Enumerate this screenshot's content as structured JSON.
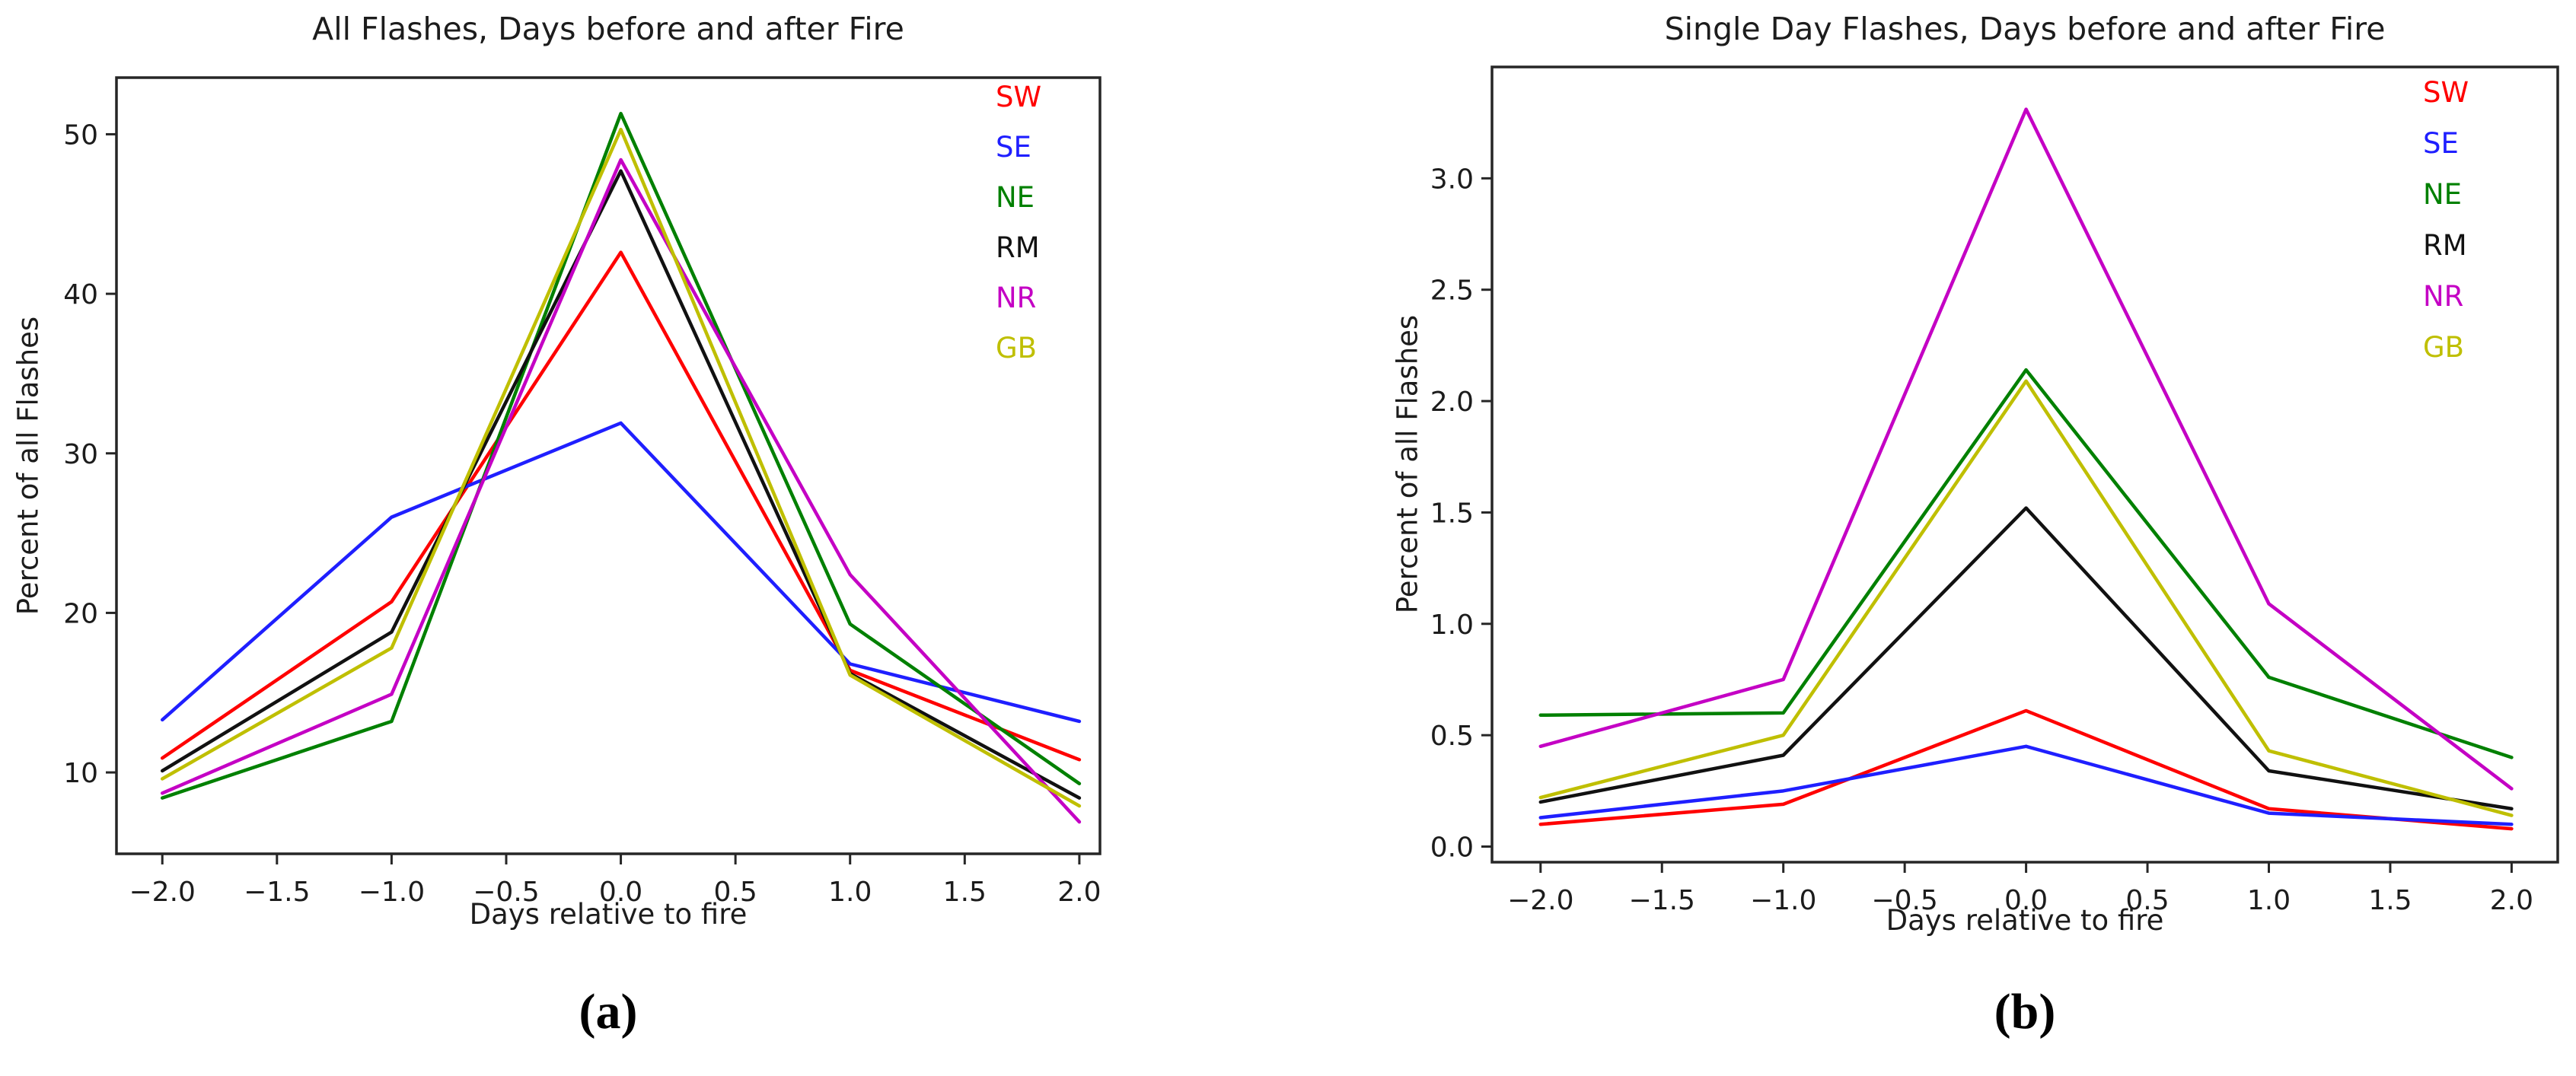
{
  "panels": {
    "a": "(a)",
    "b": "(b)"
  },
  "chart_data": [
    {
      "id": "all-flashes",
      "type": "line",
      "title": "All Flashes, Days before and after Fire",
      "xlabel": "Days relative to fire",
      "ylabel": "Percent of all Flashes",
      "x": [
        -2,
        -1,
        0,
        1,
        2
      ],
      "xlim": [
        -2.2,
        2.09
      ],
      "ylim": [
        4.9,
        53.55
      ],
      "xticks": [
        -2.0,
        -1.5,
        -1.0,
        -0.5,
        0.0,
        0.5,
        1.0,
        1.5,
        2.0
      ],
      "xtick_labels": [
        "−2.0",
        "−1.5",
        "−1.0",
        "−0.5",
        "0.0",
        "0.5",
        "1.0",
        "1.5",
        "2.0"
      ],
      "yticks": [
        10,
        20,
        30,
        40,
        50
      ],
      "ytick_labels": [
        "10",
        "20",
        "30",
        "40",
        "50"
      ],
      "grid": false,
      "legend_position": "upper right",
      "series": [
        {
          "name": "SW",
          "color": "#ff0000",
          "values": [
            10.9,
            20.7,
            42.6,
            16.4,
            10.8
          ]
        },
        {
          "name": "SE",
          "color": "#1f1fff",
          "values": [
            13.3,
            26.0,
            31.9,
            16.8,
            13.2
          ]
        },
        {
          "name": "NE",
          "color": "#008000",
          "values": [
            8.4,
            13.2,
            51.3,
            19.3,
            9.3
          ]
        },
        {
          "name": "RM",
          "color": "#111111",
          "values": [
            10.1,
            18.8,
            47.7,
            16.2,
            8.4
          ]
        },
        {
          "name": "NR",
          "color": "#c400c4",
          "values": [
            8.7,
            14.9,
            48.4,
            22.4,
            6.9
          ]
        },
        {
          "name": "GB",
          "color": "#bfbf00",
          "values": [
            9.6,
            17.8,
            50.3,
            16.1,
            7.9
          ]
        }
      ]
    },
    {
      "id": "single-day-flashes",
      "type": "line",
      "title": "Single Day Flashes, Days before and after Fire",
      "xlabel": "Days relative to fire",
      "ylabel": "Percent of all Flashes",
      "x": [
        -2,
        -1,
        0,
        1,
        2
      ],
      "xlim": [
        -2.2,
        2.19
      ],
      "ylim": [
        -0.07,
        3.5
      ],
      "xticks": [
        -2.0,
        -1.5,
        -1.0,
        -0.5,
        0.0,
        0.5,
        1.0,
        1.5,
        2.0
      ],
      "xtick_labels": [
        "−2.0",
        "−1.5",
        "−1.0",
        "−0.5",
        "0.0",
        "0.5",
        "1.0",
        "1.5",
        "2.0"
      ],
      "yticks": [
        0.0,
        0.5,
        1.0,
        1.5,
        2.0,
        2.5,
        3.0
      ],
      "ytick_labels": [
        "0.0",
        "0.5",
        "1.0",
        "1.5",
        "2.0",
        "2.5",
        "3.0"
      ],
      "grid": false,
      "legend_position": "upper right",
      "series": [
        {
          "name": "SW",
          "color": "#ff0000",
          "values": [
            0.1,
            0.19,
            0.61,
            0.17,
            0.08
          ]
        },
        {
          "name": "SE",
          "color": "#1f1fff",
          "values": [
            0.13,
            0.25,
            0.45,
            0.15,
            0.1
          ]
        },
        {
          "name": "NE",
          "color": "#008000",
          "values": [
            0.59,
            0.6,
            2.14,
            0.76,
            0.4
          ]
        },
        {
          "name": "RM",
          "color": "#111111",
          "values": [
            0.2,
            0.41,
            1.52,
            0.34,
            0.17
          ]
        },
        {
          "name": "NR",
          "color": "#c400c4",
          "values": [
            0.45,
            0.75,
            3.31,
            1.09,
            0.26
          ]
        },
        {
          "name": "GB",
          "color": "#bfbf00",
          "values": [
            0.22,
            0.5,
            2.09,
            0.43,
            0.14
          ]
        }
      ]
    }
  ]
}
